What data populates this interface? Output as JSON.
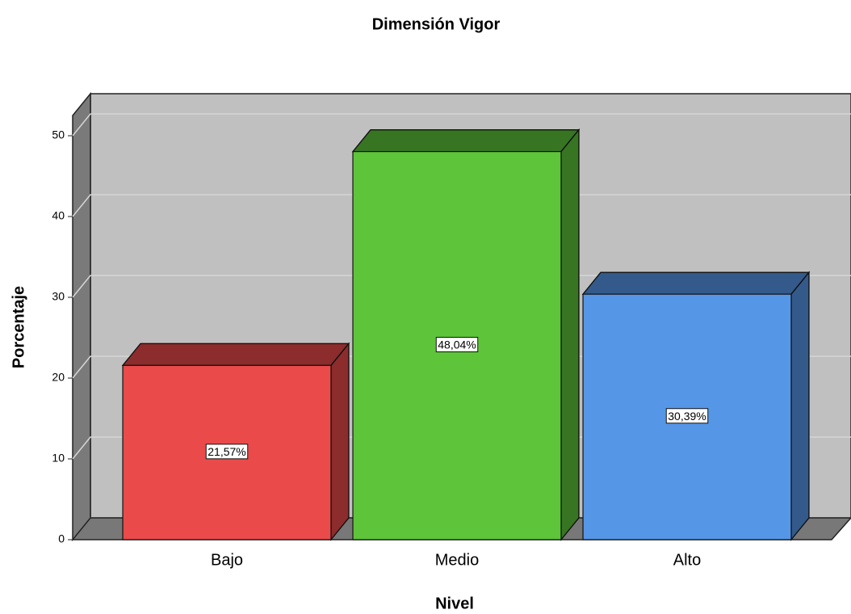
{
  "chart_data": {
    "type": "bar3d",
    "title": "Dimensión Vigor",
    "x_label": "Nivel",
    "y_label": "Porcentaje",
    "categories": [
      "Bajo",
      "Medio",
      "Alto"
    ],
    "values": [
      21.57,
      48.04,
      30.39
    ],
    "value_labels": [
      "21,57%",
      "48,04%",
      "30,39%"
    ],
    "colors": [
      "#ea4a4a",
      "#5ec43a",
      "#5596e6"
    ],
    "ylim": [
      0,
      52.5
    ],
    "yticks": [
      0,
      10,
      20,
      30,
      40,
      50
    ],
    "grid": true
  }
}
